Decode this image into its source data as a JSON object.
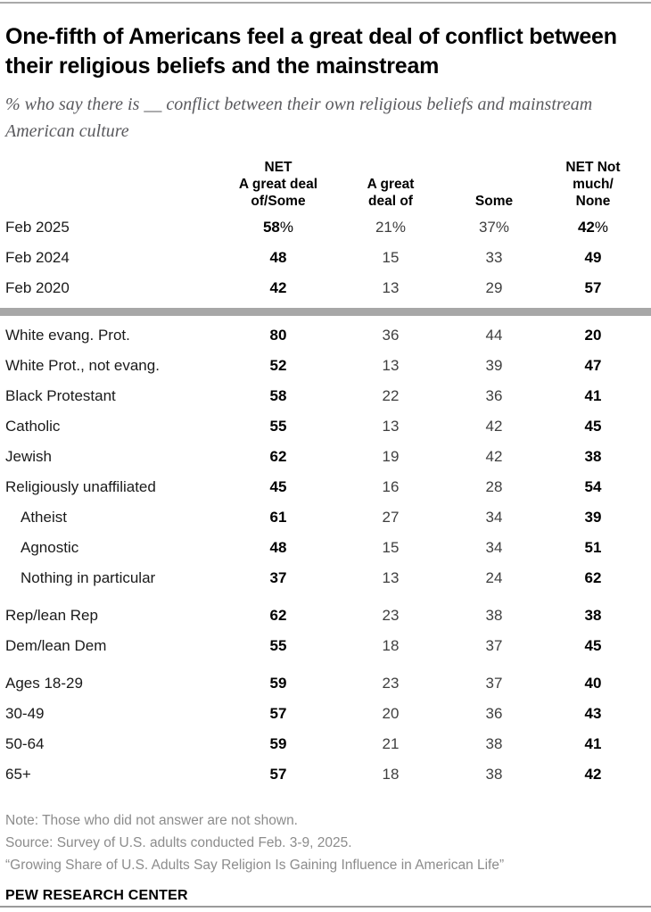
{
  "chart_data": {
    "type": "table",
    "title": "One-fifth of Americans feel a great deal of conflict between their religious beliefs and the mainstream",
    "subtitle": "% who say there is __ conflict between their own religious beliefs and mainstream American culture",
    "col_headers": [
      "NET\nA great deal\nof/Some",
      "A great\ndeal of",
      "Some",
      "NET Not\nmuch/\nNone"
    ],
    "unit_suffix": "%",
    "rows": [
      {
        "label": "Feb 2025",
        "values": [
          58,
          21,
          37,
          42
        ],
        "pct": true
      },
      {
        "label": "Feb 2024",
        "values": [
          48,
          15,
          33,
          49
        ]
      },
      {
        "label": "Feb 2020",
        "values": [
          42,
          13,
          29,
          57
        ]
      },
      {
        "divider": true
      },
      {
        "label": "White evang. Prot.",
        "values": [
          80,
          36,
          44,
          20
        ]
      },
      {
        "label": "White Prot., not evang.",
        "values": [
          52,
          13,
          39,
          47
        ]
      },
      {
        "label": "Black Protestant",
        "values": [
          58,
          22,
          36,
          41
        ]
      },
      {
        "label": "Catholic",
        "values": [
          55,
          13,
          42,
          45
        ]
      },
      {
        "label": "Jewish",
        "values": [
          62,
          19,
          42,
          38
        ]
      },
      {
        "label": "Religiously unaffiliated",
        "values": [
          45,
          16,
          28,
          54
        ]
      },
      {
        "label": "Atheist",
        "indent": true,
        "values": [
          61,
          27,
          34,
          39
        ]
      },
      {
        "label": "Agnostic",
        "indent": true,
        "values": [
          48,
          15,
          34,
          51
        ]
      },
      {
        "label": "Nothing in particular",
        "indent": true,
        "values": [
          37,
          13,
          24,
          62
        ]
      },
      {
        "label": "Rep/lean Rep",
        "gap": true,
        "values": [
          62,
          23,
          38,
          38
        ]
      },
      {
        "label": "Dem/lean Dem",
        "values": [
          55,
          18,
          37,
          45
        ]
      },
      {
        "label": "Ages 18-29",
        "gap": true,
        "values": [
          59,
          23,
          37,
          40
        ]
      },
      {
        "label": "30-49",
        "values": [
          57,
          20,
          36,
          43
        ]
      },
      {
        "label": "50-64",
        "values": [
          59,
          21,
          38,
          41
        ]
      },
      {
        "label": "65+",
        "values": [
          57,
          18,
          38,
          42
        ]
      }
    ],
    "notes": [
      "Note: Those who did not answer are not shown.",
      "Source: Survey of U.S. adults conducted Feb. 3-9, 2025.",
      "“Growing Share of U.S. Adults Say Religion Is Gaining Influence in American Life”"
    ],
    "brand": "PEW RESEARCH CENTER",
    "layout": {
      "bold_columns": [
        0,
        3
      ],
      "legend": "none",
      "grid": "off"
    },
    "colors": {
      "title_text": "#000000",
      "subtitle_text": "#5a5a5e",
      "bold_value_text": "#000000",
      "regular_value_text": "#3f3f3f",
      "section_divider": "#a7a7a7",
      "note_text": "#8c8c8c",
      "frame_line": "#9a9a9a"
    }
  }
}
